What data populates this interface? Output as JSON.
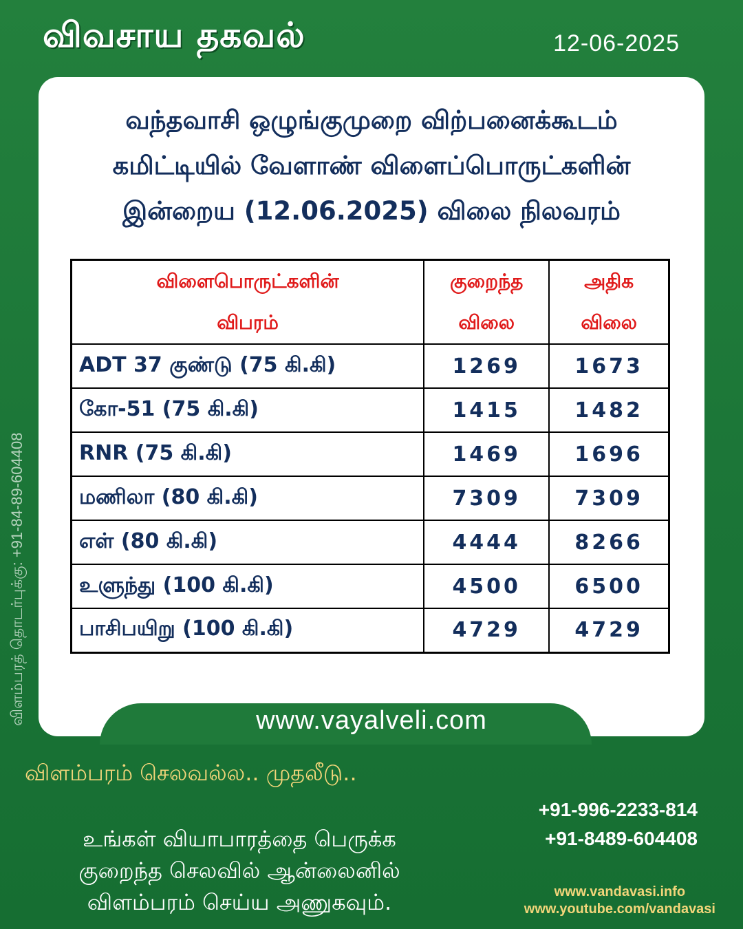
{
  "header": {
    "title": "விவசாய  தகவல்",
    "date": "12-06-2025"
  },
  "side_contact": "விளம்பரத் தொடர்புக்கு: +91-84-89-604408",
  "card": {
    "heading_lines": [
      "வந்தவாசி ஒழுங்குமுறை விற்பனைக்கூடம்",
      "கமிட்டியில் வேளாண் விளைப்பொருட்களின்",
      "இன்றைய (12.06.2025) விலை நிலவரம்"
    ],
    "table": {
      "headers": {
        "item": [
          "விளைபொருட்களின்",
          "விபரம்"
        ],
        "min": [
          "குறைந்த",
          "விலை"
        ],
        "max": [
          "அதிக",
          "விலை"
        ]
      },
      "rows": [
        {
          "item": "ADT 37 குண்டு (75 கி.கி)",
          "min": "1269",
          "max": "1673"
        },
        {
          "item": "கோ-51 (75 கி.கி)",
          "min": "1415",
          "max": "1482"
        },
        {
          "item": "RNR (75 கி.கி)",
          "min": "1469",
          "max": "1696"
        },
        {
          "item": "மணிலா (80 கி.கி)",
          "min": "7309",
          "max": "7309"
        },
        {
          "item": "எள் (80 கி.கி)",
          "min": "4444",
          "max": "8266"
        },
        {
          "item": "உளுந்து (100 கி.கி)",
          "min": "4500",
          "max": "6500"
        },
        {
          "item": "பாசிபயிறு (100 கி.கி)",
          "min": "4729",
          "max": "4729"
        }
      ]
    }
  },
  "website": "www.vayalveli.com",
  "ad": {
    "tagline": "விளம்பரம் செலவல்ல.. முதலீடு..",
    "body_lines": [
      "உங்கள் வியாபாரத்தை பெருக்க",
      "குறைந்த செலவில் ஆன்லைனில்",
      "விளம்பரம் செய்ய அணுகவும்."
    ],
    "phones": [
      "+91-996-2233-814",
      "+91-8489-604408"
    ],
    "links": [
      "www.vandavasi.info",
      "www.youtube.com/vandavasi"
    ]
  },
  "colors": {
    "background": "#1f7a3a",
    "heading": "#132e5c",
    "table_header": "#e01a1a",
    "accent": "#f2d57a"
  }
}
